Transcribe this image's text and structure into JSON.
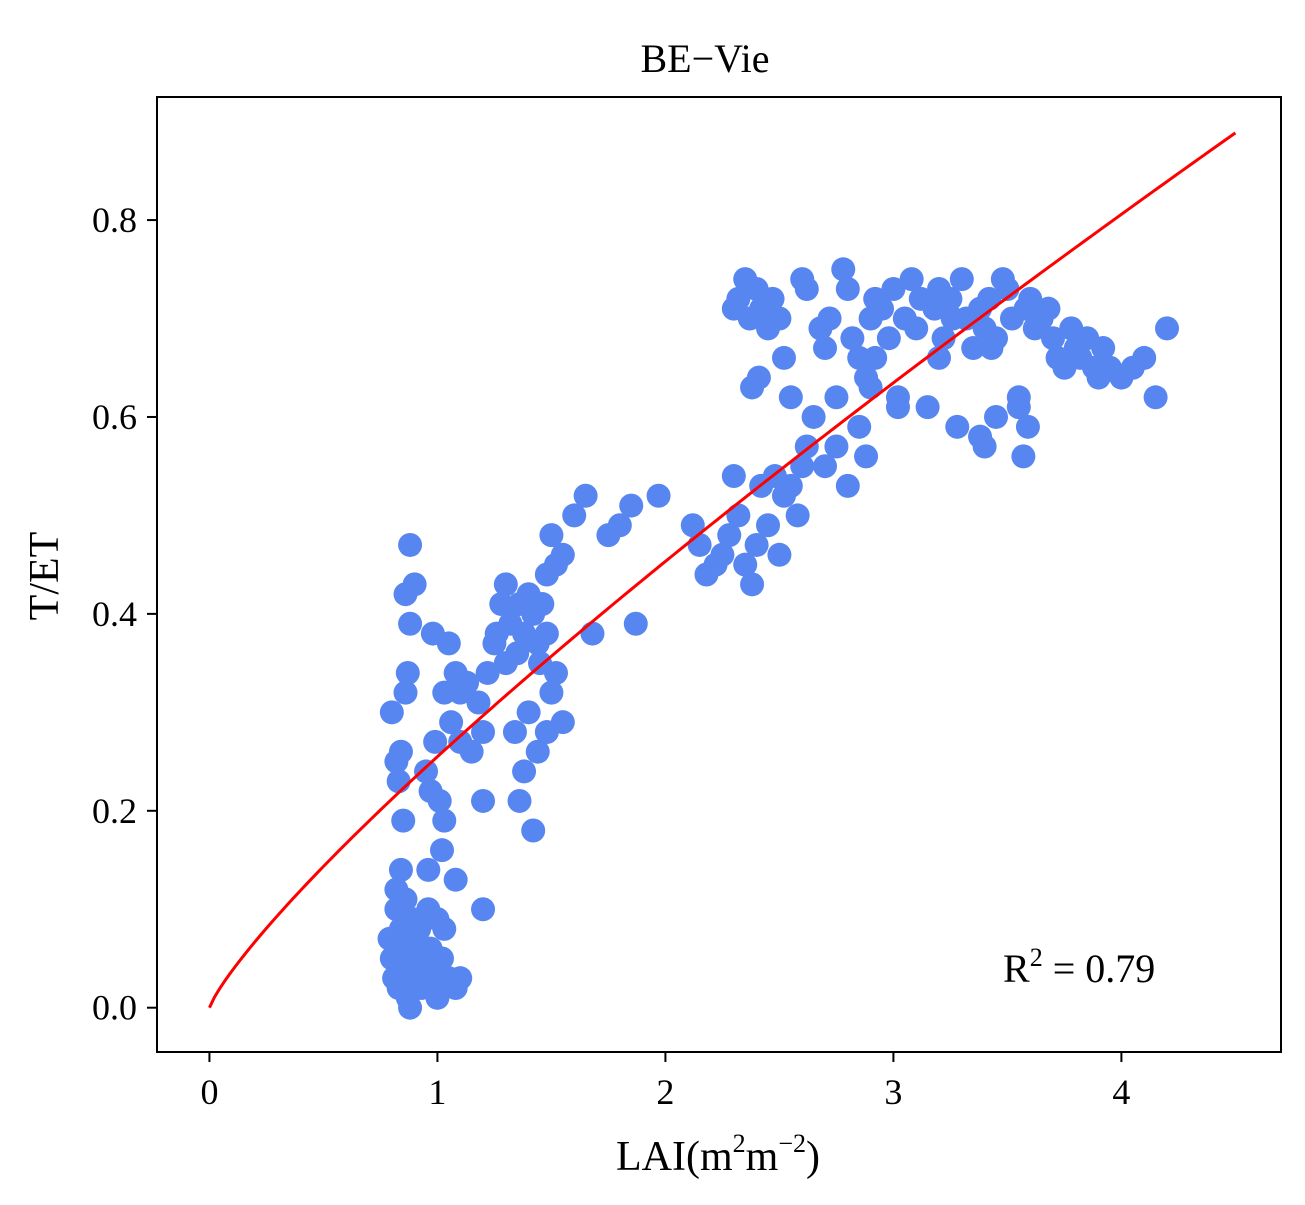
{
  "chart_data": {
    "type": "scatter",
    "title": "BE−Vie",
    "xlabel": {
      "base": "LAI(m",
      "sup1": "2",
      "mid": "m",
      "sup2": "−2",
      "end": ")"
    },
    "ylabel": "T/ET",
    "xlim": [
      -0.23,
      4.7
    ],
    "ylim": [
      -0.045,
      0.925
    ],
    "xticks": [
      0,
      1,
      2,
      3,
      4
    ],
    "xtick_labels": [
      "0",
      "1",
      "2",
      "3",
      "4"
    ],
    "yticks": [
      0.0,
      0.2,
      0.4,
      0.6,
      0.8
    ],
    "ytick_labels": [
      "0.0",
      "0.2",
      "0.4",
      "0.6",
      "0.8"
    ],
    "grid": false,
    "annotation": {
      "base": "R",
      "sup": "2",
      "rest": " = 0.79"
    },
    "colors": {
      "points": "#5886f0",
      "fit": "#ff0000"
    },
    "fit": {
      "form": "power",
      "a": 0.255,
      "b": 0.83,
      "x_range": [
        0,
        4.5
      ]
    },
    "points": [
      [
        0.79,
        0.07
      ],
      [
        0.8,
        0.05
      ],
      [
        0.81,
        0.03
      ],
      [
        0.82,
        0.1
      ],
      [
        0.83,
        0.02
      ],
      [
        0.84,
        0.08
      ],
      [
        0.85,
        0.04
      ],
      [
        0.86,
        0.06
      ],
      [
        0.87,
        0.01
      ],
      [
        0.88,
        0.0
      ],
      [
        0.89,
        0.03
      ],
      [
        0.9,
        0.05
      ],
      [
        0.91,
        0.07
      ],
      [
        0.93,
        0.02
      ],
      [
        0.95,
        0.04
      ],
      [
        0.97,
        0.06
      ],
      [
        0.98,
        0.03
      ],
      [
        1.0,
        0.01
      ],
      [
        1.02,
        0.05
      ],
      [
        1.05,
        0.03
      ],
      [
        1.08,
        0.02
      ],
      [
        1.1,
        0.03
      ],
      [
        0.82,
        0.12
      ],
      [
        0.84,
        0.14
      ],
      [
        0.86,
        0.11
      ],
      [
        0.89,
        0.09
      ],
      [
        0.92,
        0.08
      ],
      [
        0.96,
        0.1
      ],
      [
        1.0,
        0.09
      ],
      [
        1.03,
        0.08
      ],
      [
        0.8,
        0.3
      ],
      [
        0.82,
        0.25
      ],
      [
        0.83,
        0.23
      ],
      [
        0.84,
        0.26
      ],
      [
        0.85,
        0.19
      ],
      [
        0.86,
        0.32
      ],
      [
        0.87,
        0.34
      ],
      [
        0.88,
        0.39
      ],
      [
        0.86,
        0.42
      ],
      [
        0.88,
        0.47
      ],
      [
        0.9,
        0.43
      ],
      [
        0.95,
        0.24
      ],
      [
        0.97,
        0.22
      ],
      [
        0.99,
        0.27
      ],
      [
        1.01,
        0.21
      ],
      [
        1.03,
        0.19
      ],
      [
        1.02,
        0.16
      ],
      [
        0.96,
        0.14
      ],
      [
        1.08,
        0.13
      ],
      [
        1.2,
        0.1
      ],
      [
        0.98,
        0.38
      ],
      [
        1.05,
        0.37
      ],
      [
        1.08,
        0.34
      ],
      [
        1.1,
        0.32
      ],
      [
        1.03,
        0.32
      ],
      [
        1.06,
        0.29
      ],
      [
        1.1,
        0.27
      ],
      [
        1.13,
        0.33
      ],
      [
        1.15,
        0.26
      ],
      [
        1.18,
        0.31
      ],
      [
        1.2,
        0.28
      ],
      [
        1.22,
        0.34
      ],
      [
        1.25,
        0.37
      ],
      [
        1.26,
        0.38
      ],
      [
        1.28,
        0.41
      ],
      [
        1.3,
        0.43
      ],
      [
        1.32,
        0.39
      ],
      [
        1.35,
        0.36
      ],
      [
        1.36,
        0.41
      ],
      [
        1.38,
        0.38
      ],
      [
        1.4,
        0.42
      ],
      [
        1.42,
        0.4
      ],
      [
        1.44,
        0.37
      ],
      [
        1.45,
        0.35
      ],
      [
        1.46,
        0.41
      ],
      [
        1.48,
        0.38
      ],
      [
        1.3,
        0.35
      ],
      [
        1.34,
        0.28
      ],
      [
        1.38,
        0.24
      ],
      [
        1.4,
        0.3
      ],
      [
        1.44,
        0.26
      ],
      [
        1.48,
        0.28
      ],
      [
        1.5,
        0.32
      ],
      [
        1.52,
        0.34
      ],
      [
        1.55,
        0.29
      ],
      [
        1.36,
        0.21
      ],
      [
        1.42,
        0.18
      ],
      [
        1.2,
        0.21
      ],
      [
        1.48,
        0.44
      ],
      [
        1.5,
        0.48
      ],
      [
        1.52,
        0.45
      ],
      [
        1.55,
        0.46
      ],
      [
        1.6,
        0.5
      ],
      [
        1.65,
        0.52
      ],
      [
        1.68,
        0.38
      ],
      [
        1.75,
        0.48
      ],
      [
        1.8,
        0.49
      ],
      [
        1.85,
        0.51
      ],
      [
        1.87,
        0.39
      ],
      [
        1.97,
        0.52
      ],
      [
        2.12,
        0.49
      ],
      [
        2.15,
        0.47
      ],
      [
        2.18,
        0.44
      ],
      [
        2.22,
        0.45
      ],
      [
        2.25,
        0.46
      ],
      [
        2.28,
        0.48
      ],
      [
        2.3,
        0.54
      ],
      [
        2.32,
        0.5
      ],
      [
        2.35,
        0.45
      ],
      [
        2.38,
        0.43
      ],
      [
        2.4,
        0.47
      ],
      [
        2.42,
        0.53
      ],
      [
        2.45,
        0.49
      ],
      [
        2.48,
        0.54
      ],
      [
        2.5,
        0.46
      ],
      [
        2.52,
        0.52
      ],
      [
        2.55,
        0.53
      ],
      [
        2.58,
        0.5
      ],
      [
        2.6,
        0.55
      ],
      [
        2.62,
        0.57
      ],
      [
        2.7,
        0.55
      ],
      [
        2.75,
        0.57
      ],
      [
        2.8,
        0.53
      ],
      [
        2.85,
        0.59
      ],
      [
        2.88,
        0.56
      ],
      [
        2.9,
        0.63
      ],
      [
        2.92,
        0.66
      ],
      [
        2.3,
        0.71
      ],
      [
        2.32,
        0.72
      ],
      [
        2.35,
        0.74
      ],
      [
        2.37,
        0.7
      ],
      [
        2.4,
        0.73
      ],
      [
        2.42,
        0.71
      ],
      [
        2.45,
        0.69
      ],
      [
        2.47,
        0.72
      ],
      [
        2.38,
        0.63
      ],
      [
        2.41,
        0.64
      ],
      [
        2.5,
        0.7
      ],
      [
        2.52,
        0.66
      ],
      [
        2.55,
        0.62
      ],
      [
        2.6,
        0.74
      ],
      [
        2.62,
        0.73
      ],
      [
        2.65,
        0.6
      ],
      [
        2.68,
        0.69
      ],
      [
        2.7,
        0.67
      ],
      [
        2.72,
        0.7
      ],
      [
        2.75,
        0.62
      ],
      [
        2.78,
        0.75
      ],
      [
        2.8,
        0.73
      ],
      [
        2.82,
        0.68
      ],
      [
        2.85,
        0.66
      ],
      [
        2.88,
        0.64
      ],
      [
        2.9,
        0.7
      ],
      [
        2.92,
        0.72
      ],
      [
        2.95,
        0.71
      ],
      [
        2.98,
        0.68
      ],
      [
        3.0,
        0.73
      ],
      [
        3.02,
        0.62
      ],
      [
        3.05,
        0.7
      ],
      [
        3.08,
        0.74
      ],
      [
        3.1,
        0.69
      ],
      [
        3.12,
        0.72
      ],
      [
        3.15,
        0.61
      ],
      [
        3.18,
        0.71
      ],
      [
        3.2,
        0.73
      ],
      [
        3.22,
        0.68
      ],
      [
        3.25,
        0.72
      ],
      [
        3.28,
        0.59
      ],
      [
        3.3,
        0.74
      ],
      [
        3.32,
        0.7
      ],
      [
        3.35,
        0.67
      ],
      [
        3.38,
        0.71
      ],
      [
        3.4,
        0.69
      ],
      [
        3.42,
        0.72
      ],
      [
        3.45,
        0.68
      ],
      [
        3.48,
        0.74
      ],
      [
        3.5,
        0.73
      ],
      [
        3.52,
        0.7
      ],
      [
        3.55,
        0.62
      ],
      [
        3.58,
        0.71
      ],
      [
        3.6,
        0.72
      ],
      [
        3.62,
        0.69
      ],
      [
        3.65,
        0.7
      ],
      [
        3.68,
        0.71
      ],
      [
        3.7,
        0.68
      ],
      [
        3.72,
        0.66
      ],
      [
        3.75,
        0.65
      ],
      [
        3.78,
        0.69
      ],
      [
        3.8,
        0.67
      ],
      [
        3.82,
        0.66
      ],
      [
        3.85,
        0.68
      ],
      [
        3.88,
        0.65
      ],
      [
        3.9,
        0.64
      ],
      [
        3.92,
        0.67
      ],
      [
        3.95,
        0.65
      ],
      [
        4.0,
        0.64
      ],
      [
        4.05,
        0.65
      ],
      [
        4.1,
        0.66
      ],
      [
        4.15,
        0.62
      ],
      [
        4.2,
        0.69
      ],
      [
        3.38,
        0.58
      ],
      [
        3.4,
        0.57
      ],
      [
        3.45,
        0.6
      ],
      [
        3.57,
        0.56
      ],
      [
        3.59,
        0.59
      ],
      [
        3.02,
        0.61
      ],
      [
        3.2,
        0.66
      ],
      [
        3.26,
        0.7
      ],
      [
        3.43,
        0.67
      ],
      [
        3.55,
        0.61
      ]
    ]
  }
}
